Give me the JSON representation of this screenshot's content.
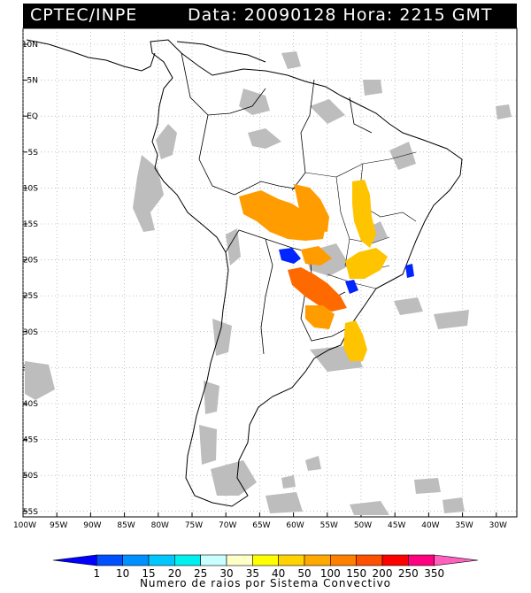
{
  "header": {
    "source": "CPTEC/INPE",
    "date_text": "Data: 20090128 Hora: 2215 GMT"
  },
  "map": {
    "lon_range": [
      -100,
      -25
    ],
    "lat_range": [
      -56,
      13
    ],
    "lat_labels": [
      "10N",
      "5N",
      "EQ",
      "5S",
      "10S",
      "15S",
      "20S",
      "25S",
      "30S",
      "35S",
      "40S",
      "45S",
      "50S",
      "55S"
    ],
    "lon_labels": [
      "100W",
      "95W",
      "90W",
      "85W",
      "80W",
      "75W",
      "70W",
      "65W",
      "60W",
      "55W",
      "50W",
      "45W",
      "40W",
      "35W",
      "30W"
    ],
    "colors": {
      "cloud": "#bdbdbd",
      "orange": "#ff9c00",
      "yellow_orange": "#ffc400",
      "red_orange": "#ff6a00",
      "blue": "#0025ff"
    }
  },
  "colorbar": {
    "values": [
      "1",
      "10",
      "15",
      "20",
      "25",
      "30",
      "35",
      "40",
      "50",
      "100",
      "150",
      "200",
      "250",
      "350"
    ],
    "colors": [
      "#0000ff",
      "#0050ff",
      "#0090ff",
      "#00c8ff",
      "#00f0f0",
      "#c8ffff",
      "#ffffc8",
      "#ffff00",
      "#ffd200",
      "#ffa800",
      "#ff8000",
      "#ff5000",
      "#ff0000",
      "#ff0080",
      "#ff60c0"
    ],
    "title": "Numero de raios por Sistema Convectivo"
  }
}
